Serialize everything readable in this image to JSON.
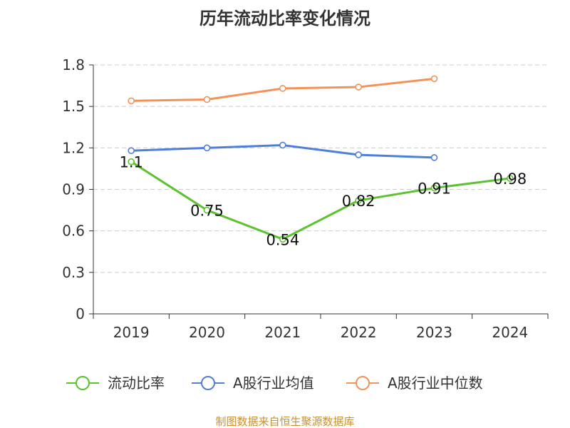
{
  "chart_data": {
    "type": "line",
    "title": "历年流动比率变化情况",
    "categories": [
      "2019",
      "2020",
      "2021",
      "2022",
      "2023",
      "2024"
    ],
    "ylim": [
      0,
      1.8
    ],
    "yticks": [
      "0",
      "0.3",
      "0.6",
      "0.9",
      "1.2",
      "1.5",
      "1.8"
    ],
    "grid": true,
    "legend_position": "bottom",
    "series": [
      {
        "name": "流动比率",
        "color": "#5cc22e",
        "values": [
          1.1,
          0.75,
          0.54,
          0.82,
          0.91,
          0.98
        ],
        "labels": [
          "1.1",
          "0.75",
          "0.54",
          "0.82",
          "0.91",
          "0.98"
        ]
      },
      {
        "name": "A股行业均值",
        "color": "#4f7fd9",
        "values": [
          1.18,
          1.2,
          1.22,
          1.15,
          1.13,
          null
        ]
      },
      {
        "name": "A股行业中位数",
        "color": "#f2935a",
        "values": [
          1.54,
          1.55,
          1.63,
          1.64,
          1.7,
          null
        ]
      }
    ]
  },
  "footer": "制图数据来自恒生聚源数据库"
}
